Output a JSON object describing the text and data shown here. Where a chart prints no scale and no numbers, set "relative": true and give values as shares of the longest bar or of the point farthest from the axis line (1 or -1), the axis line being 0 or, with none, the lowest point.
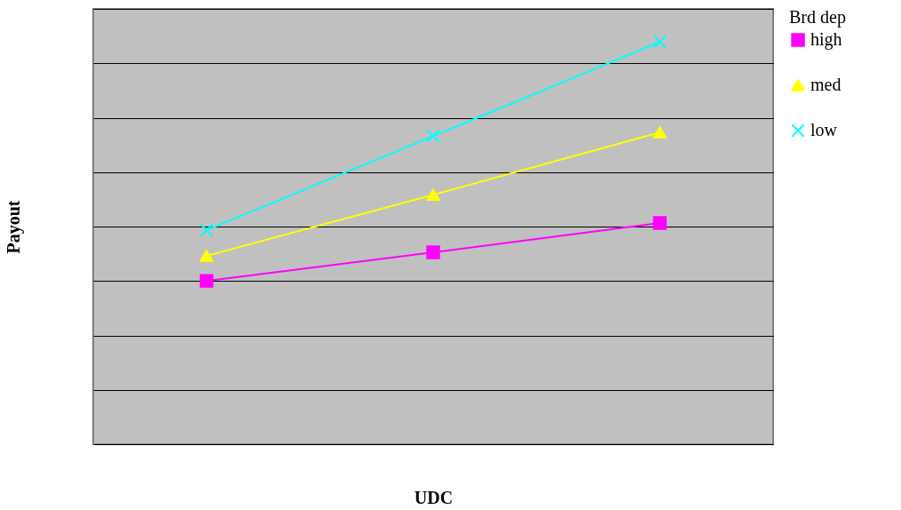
{
  "chart_data": {
    "type": "line",
    "xlabel": "UDC",
    "ylabel": "Payout",
    "legend_title": "Brd dep",
    "categories": [
      null,
      null,
      null
    ],
    "relative": true,
    "grid": "y",
    "legend": "right",
    "tick_labels": false,
    "line_style": "solid",
    "series": [
      {
        "name": "high",
        "color": "#ff00ff",
        "marker": "square",
        "values": [
          0.406,
          0.477,
          0.55
        ]
      },
      {
        "name": "med",
        "color": "#ffff00",
        "marker": "triangle",
        "values": [
          0.468,
          0.62,
          0.775
        ]
      },
      {
        "name": "low",
        "color": "#00ffff",
        "marker": "cross",
        "values": [
          0.532,
          0.766,
          1
        ]
      }
    ]
  }
}
